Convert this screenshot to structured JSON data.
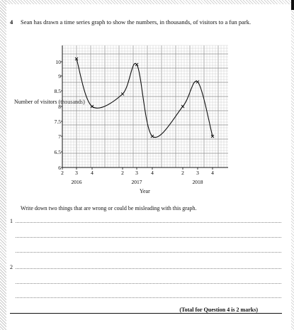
{
  "question": {
    "number": "4",
    "text": "Sean has drawn a time series graph to show the numbers, in thousands, of visitors to a fun park."
  },
  "chart_data": {
    "type": "line",
    "ylabel": "Number of visitors (thousands)",
    "xlabel": "Year",
    "y_ticks": [
      "10",
      "9",
      "8.5",
      "8",
      "7.5",
      "7",
      "6.5",
      "6"
    ],
    "x_ticks": [
      "2",
      "3",
      "4",
      "2",
      "3",
      "4",
      "2",
      "3",
      "4"
    ],
    "year_labels": [
      "2016",
      "2017",
      "2018"
    ],
    "points": [
      {
        "quarter": "2016 Q3",
        "value": 10.2
      },
      {
        "quarter": "2016 Q4",
        "value": 8.0
      },
      {
        "quarter": "2017 Q2",
        "value": 8.4
      },
      {
        "quarter": "2017 Q3",
        "value": 9.8
      },
      {
        "quarter": "2017 Q4",
        "value": 7.0
      },
      {
        "quarter": "2018 Q2",
        "value": 8.0
      },
      {
        "quarter": "2018 Q3",
        "value": 8.8
      },
      {
        "quarter": "2018 Q4",
        "value": 7.0
      }
    ],
    "grid": true
  },
  "prompt": "Write down two things that are wrong or could be misleading with this graph.",
  "answers": [
    {
      "label": "1"
    },
    {
      "label": "2"
    }
  ],
  "total": "(Total for Question 4 is 2 marks)"
}
